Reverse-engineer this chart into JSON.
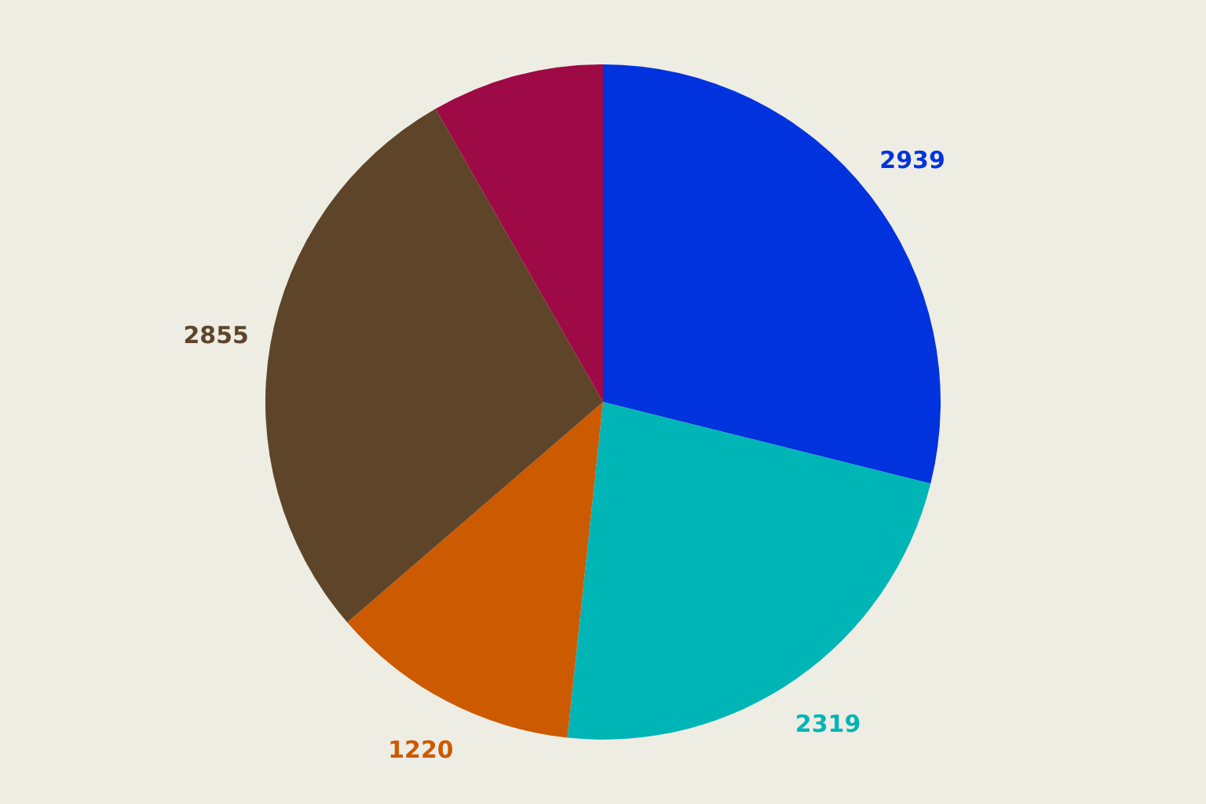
{
  "chart_data": {
    "type": "pie",
    "categories": [
      null,
      null,
      null,
      null,
      null
    ],
    "values": [
      2939,
      2319,
      1220,
      2855,
      840
    ],
    "colors": [
      "#0033dd",
      "#00b5b5",
      "#cc5a00",
      "#5e4529",
      "#9e0a45"
    ],
    "value_labels": [
      "2939",
      "2319",
      "1220",
      "2855",
      null
    ]
  }
}
